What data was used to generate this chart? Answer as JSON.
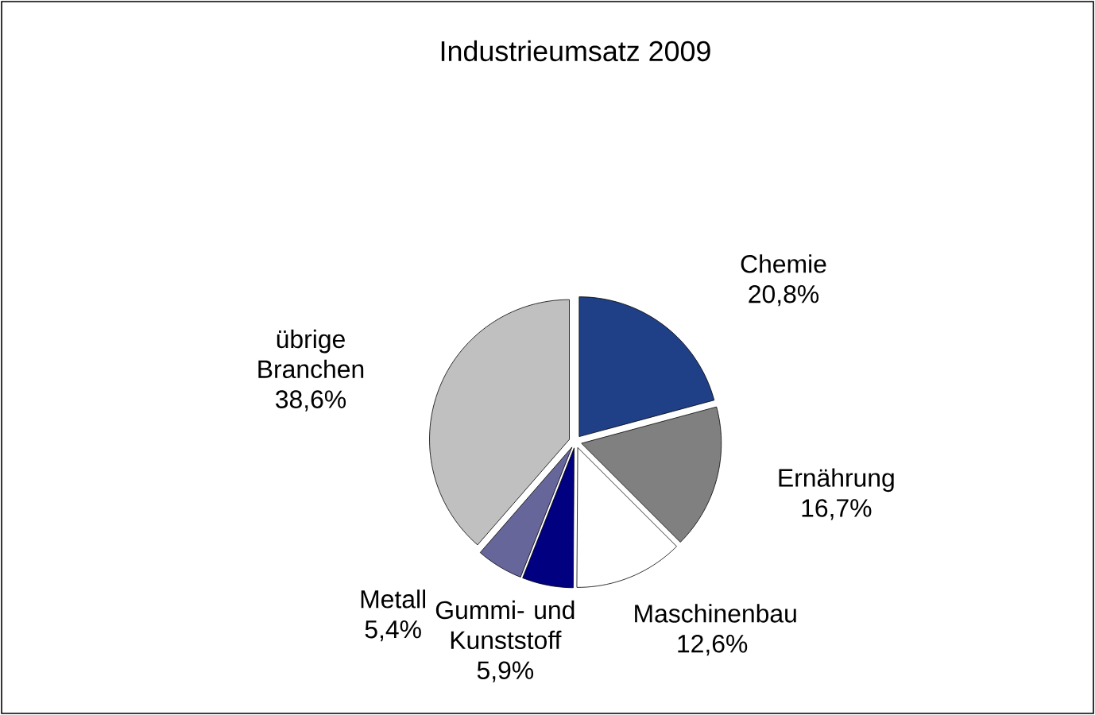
{
  "chart_data": {
    "type": "pie",
    "title": "Industrieumsatz 2009",
    "categories": [
      "Chemie",
      "Ernährung",
      "Maschinenbau",
      "Gummi- und Kunststoff",
      "Metall",
      "übrige Branchen"
    ],
    "values": [
      20.8,
      16.7,
      12.6,
      5.9,
      5.4,
      38.6
    ],
    "value_labels": [
      "20,8%",
      "16,7%",
      "12,6%",
      "5,9%",
      "5,4%",
      "38,6%"
    ],
    "colors": [
      "#1f3f86",
      "#808080",
      "#ffffff",
      "#000080",
      "#66669a",
      "#c0c0c0"
    ]
  }
}
